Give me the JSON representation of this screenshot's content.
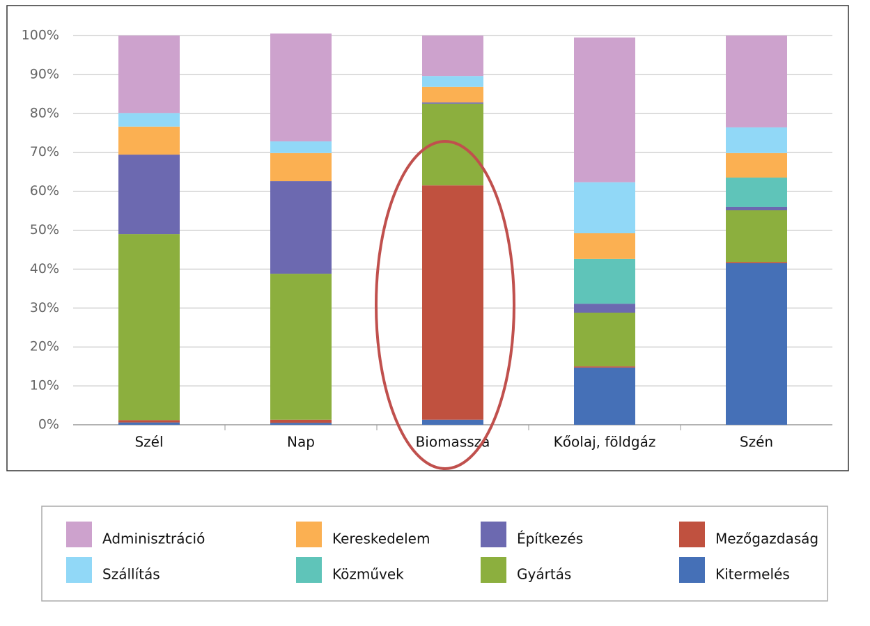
{
  "chart_data": {
    "type": "stacked-bar",
    "categories": [
      "Szél",
      "Nap",
      "Biomassza",
      "Kőolaj, földgáz",
      "Szén"
    ],
    "series": [
      {
        "name": "Kitermelés",
        "color": "#4570b7",
        "values": [
          0.6,
          0.5,
          1.3,
          14.7,
          41.5
        ]
      },
      {
        "name": "Mezőgazdaság",
        "color": "#c0513f",
        "values": [
          0.6,
          0.8,
          60.2,
          0.3,
          0.3
        ]
      },
      {
        "name": "Gyártás",
        "color": "#8caf3e",
        "values": [
          47.8,
          37.5,
          21.0,
          13.8,
          13.3
        ]
      },
      {
        "name": "Építkezés",
        "color": "#6c69b0",
        "values": [
          20.4,
          23.8,
          0.3,
          2.3,
          0.9
        ]
      },
      {
        "name": "Közművek",
        "color": "#5fc4b9",
        "values": [
          0,
          0,
          0,
          11.5,
          7.5
        ]
      },
      {
        "name": "Kereskedelem",
        "color": "#fbb052",
        "values": [
          7.2,
          7.2,
          4.0,
          6.6,
          6.3
        ]
      },
      {
        "name": "Szállítás",
        "color": "#91d8f7",
        "values": [
          3.5,
          3.0,
          2.8,
          13.1,
          6.6
        ]
      },
      {
        "name": "Adminisztráció",
        "color": "#cda2cd",
        "values": [
          19.9,
          27.7,
          10.4,
          37.2,
          23.6
        ]
      }
    ],
    "ylim": [
      0,
      100
    ],
    "yticks": [
      {
        "value": 0,
        "label": "0%"
      },
      {
        "value": 10,
        "label": "10%"
      },
      {
        "value": 20,
        "label": "20%"
      },
      {
        "value": 30,
        "label": "30%"
      },
      {
        "value": 40,
        "label": "40%"
      },
      {
        "value": 50,
        "label": "50%"
      },
      {
        "value": 60,
        "label": "60%"
      },
      {
        "value": 70,
        "label": "70%"
      },
      {
        "value": 80,
        "label": "80%"
      },
      {
        "value": 90,
        "label": "90%"
      },
      {
        "value": 100,
        "label": "100%"
      }
    ],
    "grid": true
  }
}
